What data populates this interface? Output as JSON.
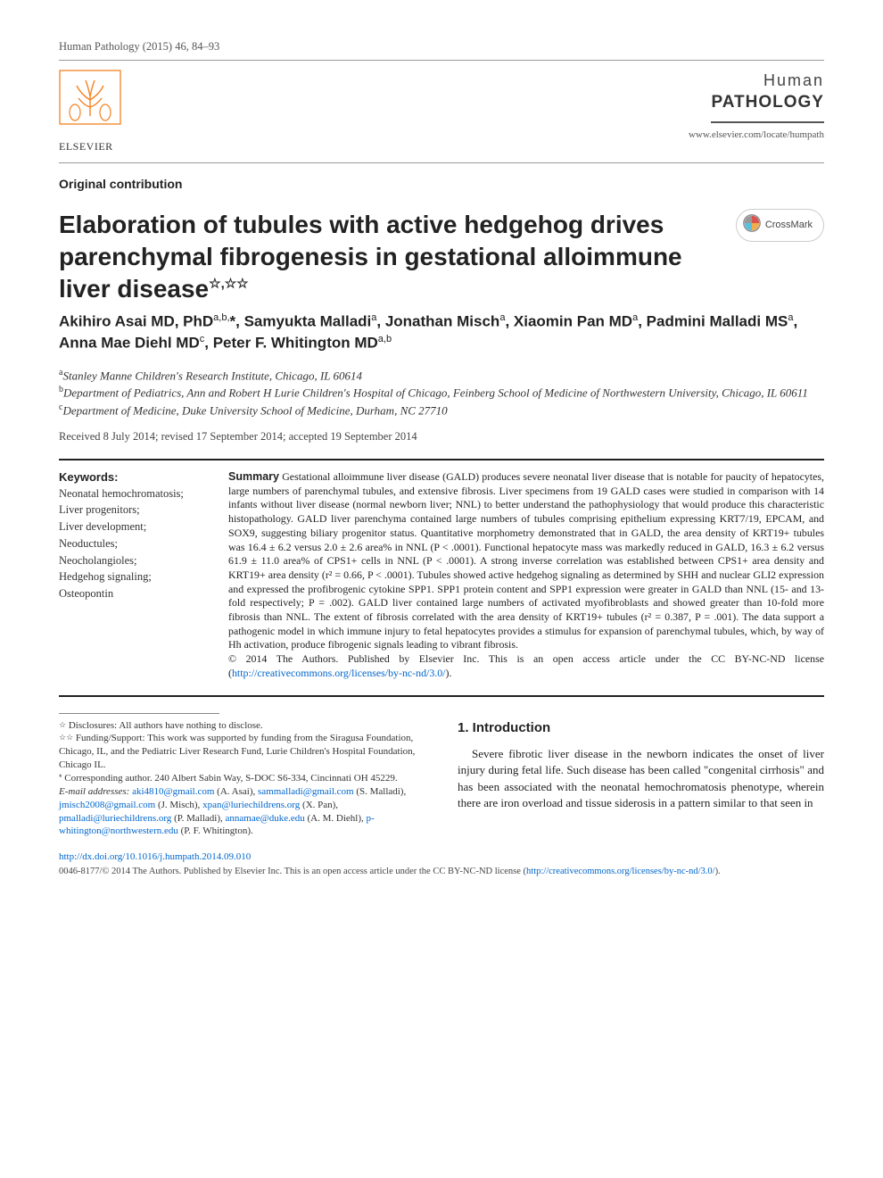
{
  "header": {
    "citation": "Human Pathology (2015) 46, 84–93"
  },
  "publisher": {
    "name": "ELSEVIER"
  },
  "journal": {
    "title_line1": "Human",
    "title_line2": "PATHOLOGY",
    "url": "www.elsevier.com/locate/humpath"
  },
  "section_label": "Original contribution",
  "crossmark_label": "CrossMark",
  "title": "Elaboration of tubules with active hedgehog drives parenchymal fibrogenesis in gestational alloimmune liver disease",
  "title_stars": "☆,☆☆",
  "authors_html": "Akihiro Asai MD, PhD<sup>a,b,</sup>*, Samyukta Malladi<sup>a</sup>, Jonathan Misch<sup>a</sup>, Xiaomin Pan MD<sup>a</sup>, Padmini Malladi MS<sup>a</sup>, Anna Mae Diehl MD<sup>c</sup>, Peter F. Whitington MD<sup>a,b</sup>",
  "affiliations": {
    "a": "Stanley Manne Children's Research Institute, Chicago, IL 60614",
    "b": "Department of Pediatrics, Ann and Robert H Lurie Children's Hospital of Chicago, Feinberg School of Medicine of Northwestern University, Chicago, IL 60611",
    "c": "Department of Medicine, Duke University School of Medicine, Durham, NC 27710"
  },
  "dates": "Received 8 July 2014; revised 17 September 2014; accepted 19 September 2014",
  "keywords": {
    "heading": "Keywords:",
    "items": "Neonatal hemochromatosis;\nLiver progenitors;\nLiver development;\nNeoductules;\nNeocholangioles;\nHedgehog signaling;\nOsteopontin"
  },
  "abstract": {
    "heading": "Summary",
    "body": " Gestational alloimmune liver disease (GALD) produces severe neonatal liver disease that is notable for paucity of hepatocytes, large numbers of parenchymal tubules, and extensive fibrosis. Liver specimens from 19 GALD cases were studied in comparison with 14 infants without liver disease (normal newborn liver; NNL) to better understand the pathophysiology that would produce this characteristic histopathology. GALD liver parenchyma contained large numbers of tubules comprising epithelium expressing KRT7/19, EPCAM, and SOX9, suggesting biliary progenitor status. Quantitative morphometry demonstrated that in GALD, the area density of KRT19+ tubules was 16.4 ± 6.2 versus 2.0 ± 2.6 area% in NNL (P < .0001). Functional hepatocyte mass was markedly reduced in GALD, 16.3 ± 6.2 versus 61.9 ± 11.0 area% of CPS1+ cells in NNL (P < .0001). A strong inverse correlation was established between CPS1+ area density and KRT19+ area density (r² = 0.66, P < .0001). Tubules showed active hedgehog signaling as determined by SHH and nuclear GLI2 expression and expressed the profibrogenic cytokine SPP1. SPP1 protein content and SPP1 expression were greater in GALD than NNL (15- and 13-fold respectively; P = .002). GALD liver contained large numbers of activated myofibroblasts and showed greater than 10-fold more fibrosis than NNL. The extent of fibrosis correlated with the area density of KRT19+ tubules (r² = 0.387, P = .001). The data support a pathogenic model in which immune injury to fetal hepatocytes provides a stimulus for expansion of parenchymal tubules, which, by way of Hh activation, produce fibrogenic signals leading to vibrant fibrosis.",
    "copyright": "© 2014 The Authors. Published by Elsevier Inc. This is an open access article under the CC BY-NC-ND license (",
    "license_url_text": "http://creativecommons.org/licenses/by-nc-nd/3.0/",
    "copyright_close": ")."
  },
  "footnotes": {
    "disclosures_star": "☆",
    "disclosures": "  Disclosures: All authors have nothing to disclose.",
    "funding_star": "☆☆",
    "funding": " Funding/Support: This work was supported by funding from the Siragusa Foundation, Chicago, IL, and the Pediatric Liver Research Fund, Lurie Children's Hospital Foundation, Chicago IL.",
    "corresponding_star": "*",
    "corresponding": " Corresponding author. 240 Albert Sabin Way, S-DOC S6-334, Cincinnati OH 45229.",
    "emails_label": "E-mail addresses:",
    "emails": [
      {
        "addr": "aki4810@gmail.com",
        "who": " (A. Asai), "
      },
      {
        "addr": "sammalladi@gmail.com",
        "who": " (S. Malladi), "
      },
      {
        "addr": "jmisch2008@gmail.com",
        "who": " (J. Misch), "
      },
      {
        "addr": "xpan@luriechildrens.org",
        "who": " (X. Pan), "
      },
      {
        "addr": "pmalladi@luriechildrens.org",
        "who": " (P. Malladi), "
      },
      {
        "addr": "annamae@duke.edu",
        "who": " (A. M. Diehl), "
      },
      {
        "addr": "p-whitington@northwestern.edu",
        "who": " (P. F. Whitington)."
      }
    ]
  },
  "intro": {
    "heading": "1. Introduction",
    "body": "Severe fibrotic liver disease in the newborn indicates the onset of liver injury during fetal life. Such disease has been called \"congenital cirrhosis\" and has been associated with the neonatal hemochromatosis phenotype, wherein there are iron overload and tissue siderosis in a pattern similar to that seen in"
  },
  "doi": {
    "url_text": "http://dx.doi.org/10.1016/j.humpath.2014.09.010"
  },
  "bottom_copyright": {
    "text": "0046-8177/© 2014 The Authors. Published by Elsevier Inc. This is an open access article under the CC BY-NC-ND license (",
    "url_text": "http://creativecommons.org/licenses/by-nc-nd/3.0/",
    "close": ")."
  },
  "colors": {
    "link": "#0066cc",
    "text": "#333333",
    "rule": "#222222"
  }
}
